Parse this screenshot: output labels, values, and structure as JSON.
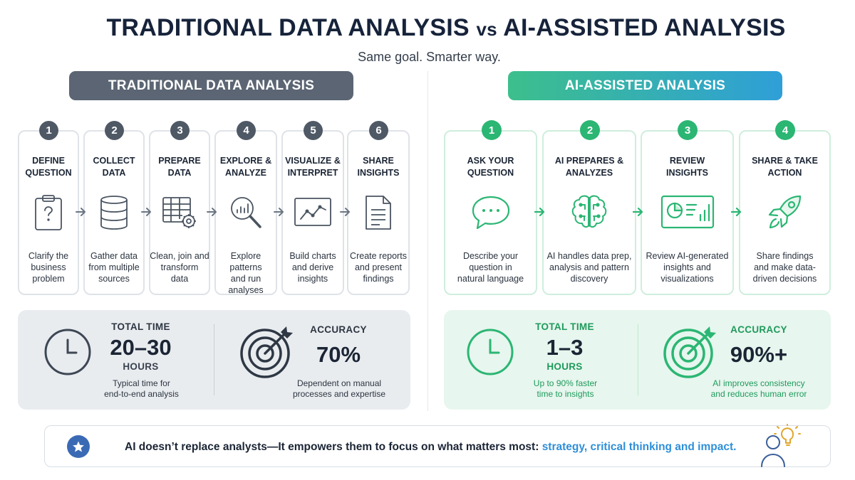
{
  "header": {
    "title_left": "TRADITIONAL DATA ANALYSIS",
    "title_vs": "vs",
    "title_right": "AI-ASSISTED ANALYSIS",
    "subtitle": "Same goal. Smarter way."
  },
  "traditional": {
    "banner": "TRADITIONAL DATA ANALYSIS",
    "steps": [
      {
        "num": "1",
        "title": "DEFINE\nQUESTION",
        "desc": "Clarify the\nbusiness\nproblem",
        "icon": "clipboard-question-icon"
      },
      {
        "num": "2",
        "title": "COLLECT\nDATA",
        "desc": "Gather data\nfrom multiple\nsources",
        "icon": "database-icon"
      },
      {
        "num": "3",
        "title": "PREPARE\nDATA",
        "desc": "Clean, join and\ntransform\ndata",
        "icon": "table-gear-icon"
      },
      {
        "num": "4",
        "title": "EXPLORE &\nANALYZE",
        "desc": "Explore patterns\nand run\nanalyses",
        "icon": "magnifier-chart-icon"
      },
      {
        "num": "5",
        "title": "VISUALIZE &\nINTERPRET",
        "desc": "Build charts\nand derive\ninsights",
        "icon": "line-chart-icon"
      },
      {
        "num": "6",
        "title": "SHARE\nINSIGHTS",
        "desc": "Create reports\nand present\nfindings",
        "icon": "document-icon"
      }
    ],
    "time": {
      "label": "TOTAL TIME",
      "value": "20–30",
      "unit": "HOURS",
      "note": "Typical time for\nend-to-end analysis",
      "icon": "clock-icon"
    },
    "accuracy": {
      "label": "ACCURACY",
      "value": "70%",
      "note": "Dependent on manual\nprocesses and expertise",
      "icon": "target-icon"
    }
  },
  "ai": {
    "banner": "AI-ASSISTED ANALYSIS",
    "steps": [
      {
        "num": "1",
        "title": "ASK YOUR\nQUESTION",
        "desc": "Describe your\nquestion in\nnatural language",
        "icon": "chat-bubble-icon"
      },
      {
        "num": "2",
        "title": "AI PREPARES &\nANALYZES",
        "desc": "AI handles data prep,\nanalysis and pattern\ndiscovery",
        "icon": "ai-brain-icon"
      },
      {
        "num": "3",
        "title": "REVIEW\nINSIGHTS",
        "desc": "Review AI-generated\ninsights and\nvisualizations",
        "icon": "dashboard-icon"
      },
      {
        "num": "4",
        "title": "SHARE & TAKE\nACTION",
        "desc": "Share findings\nand make data-\ndriven decisions",
        "icon": "rocket-icon"
      }
    ],
    "time": {
      "label": "TOTAL TIME",
      "value": "1–3",
      "unit": "HOURS",
      "note": "Up to 90% faster\ntime to insights",
      "icon": "clock-icon"
    },
    "accuracy": {
      "label": "ACCURACY",
      "value": "90%+",
      "note": "AI improves consistency\nand reduces human error",
      "icon": "target-icon"
    }
  },
  "footer": {
    "text_main": "AI doesn’t replace analysts—It empowers them to focus on what matters most: ",
    "text_highlight": "strategy, critical thinking and impact.",
    "icon_left": "star-icon",
    "icon_right": "person-lightbulb-icon"
  },
  "colors": {
    "trad_accent": "#5b6573",
    "ai_green": "#2bb673",
    "ai_blue": "#2f9fd8",
    "highlight": "#2f8fd8"
  }
}
